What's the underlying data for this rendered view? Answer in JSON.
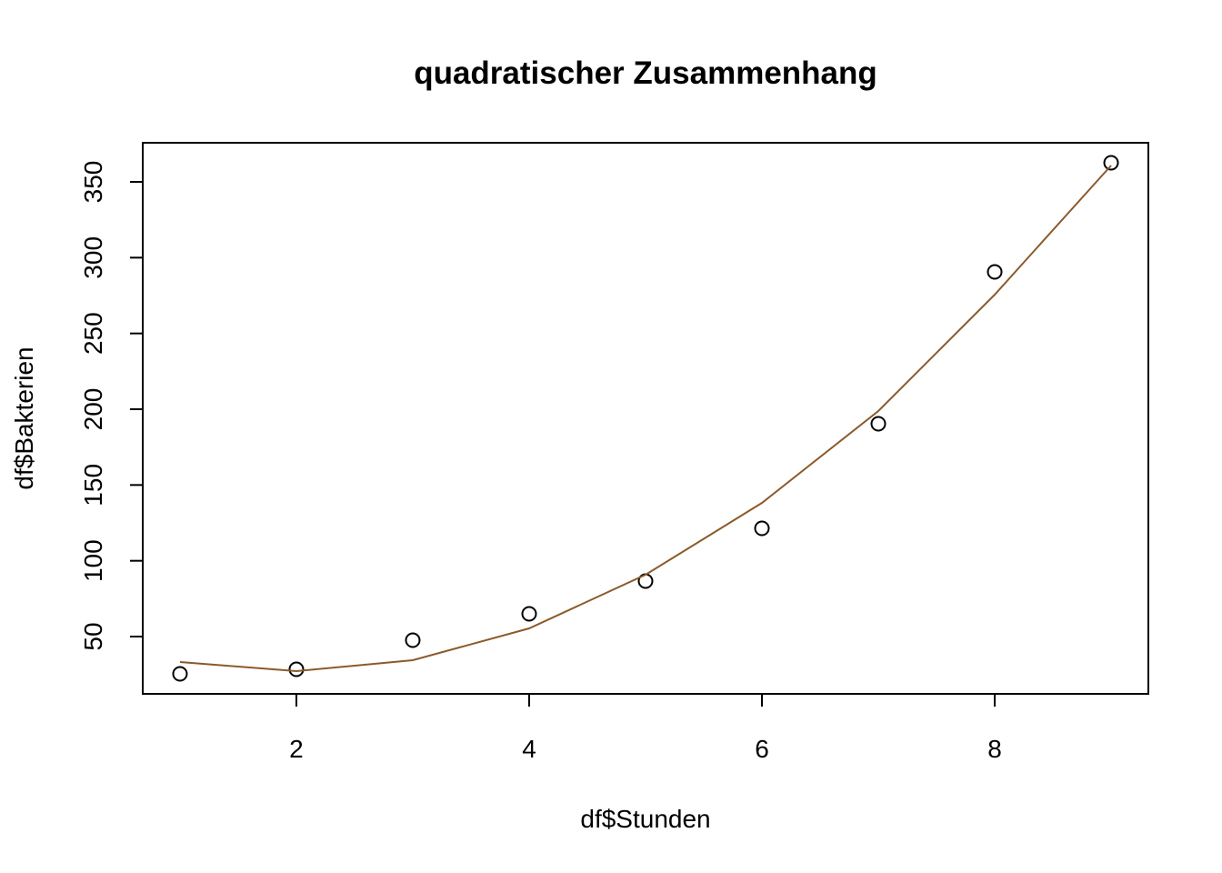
{
  "chart_data": {
    "type": "scatter",
    "title": "quadratischer Zusammenhang",
    "x_label": "df$Stunden",
    "y_label": "df$Bakterien",
    "x": [
      1,
      2,
      3,
      4,
      5,
      6,
      7,
      8,
      9
    ],
    "series": [
      {
        "type": "scatter",
        "color": "#000000",
        "values": [
          25.4,
          28.4,
          47.6,
          65,
          86.6,
          121.4,
          190.4,
          290.6,
          362.6
        ]
      },
      {
        "type": "line",
        "color": "#8b5a2b",
        "values": [
          33.2,
          27.2,
          34.4,
          55.4,
          90.8,
          138.2,
          198.8,
          275.6,
          360.8
        ]
      }
    ],
    "xlim": [
      0.68,
      9.32
    ],
    "ylim": [
      12.2,
      375.8
    ],
    "xticks": [
      2,
      4,
      6,
      8
    ],
    "yticks": [
      50,
      100,
      150,
      200,
      250,
      300,
      350
    ]
  }
}
